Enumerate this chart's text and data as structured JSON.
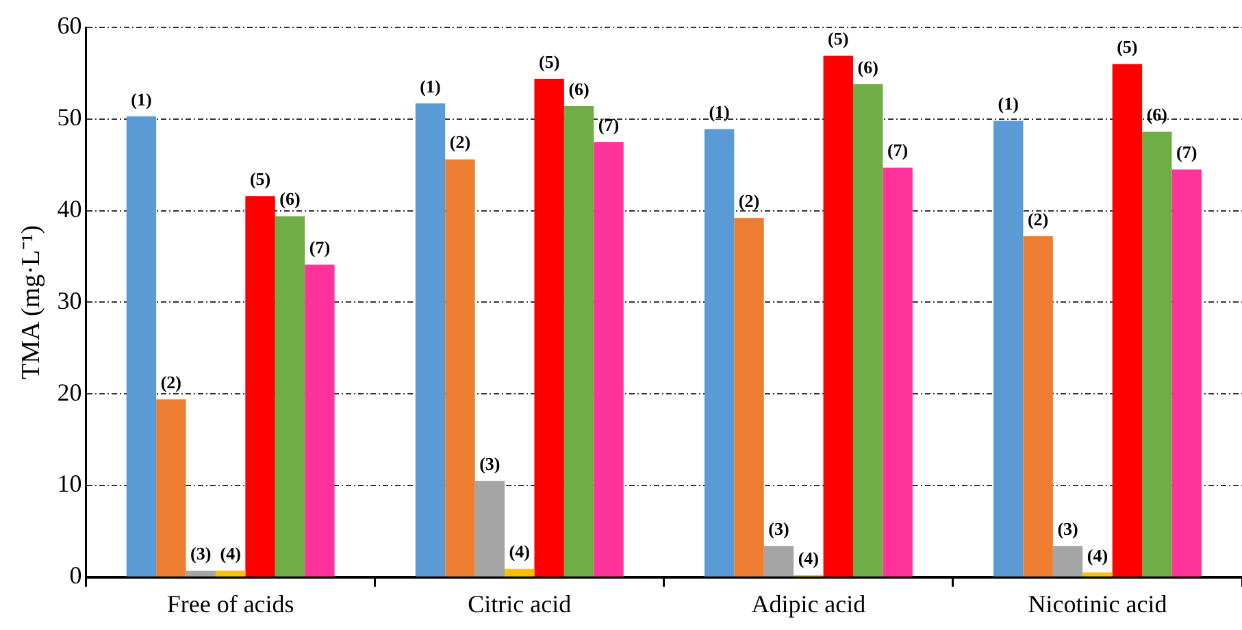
{
  "chart_data": {
    "type": "bar",
    "ylabel": "TMA (mg·L⁻¹)",
    "categories": [
      "Free of acids",
      "Citric acid",
      "Adipic acid",
      "Nicotinic acid"
    ],
    "series": [
      {
        "name": "(1)",
        "color": "#5b9bd5",
        "values": [
          50.3,
          51.7,
          48.9,
          49.8
        ]
      },
      {
        "name": "(2)",
        "color": "#ed7d31",
        "values": [
          19.4,
          45.6,
          39.2,
          37.2
        ]
      },
      {
        "name": "(3)",
        "color": "#a5a5a5",
        "values": [
          0.7,
          10.5,
          3.4,
          3.4
        ]
      },
      {
        "name": "(4)",
        "color": "#ffc000",
        "values": [
          0.7,
          0.9,
          0.2,
          0.5
        ]
      },
      {
        "name": "(5)",
        "color": "#ff0000",
        "values": [
          41.6,
          54.4,
          56.9,
          56.0
        ]
      },
      {
        "name": "(6)",
        "color": "#70ad47",
        "values": [
          39.4,
          51.4,
          53.8,
          48.6
        ]
      },
      {
        "name": "(7)",
        "color": "#ff3399",
        "values": [
          34.1,
          47.5,
          44.7,
          44.5
        ]
      }
    ],
    "ylim": [
      0,
      60
    ],
    "yticks": [
      0,
      10,
      20,
      30,
      40,
      50,
      60
    ],
    "grid": "y",
    "legend": false
  }
}
